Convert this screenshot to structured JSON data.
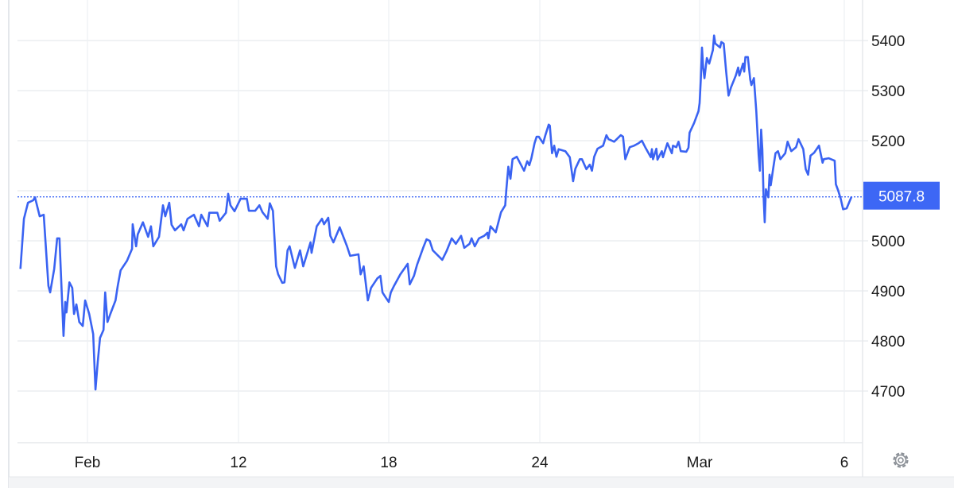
{
  "chart_data": {
    "type": "line",
    "title": "",
    "xlabel": "",
    "ylabel": "",
    "y_axis_position": "right",
    "ylim": [
      4610,
      5480
    ],
    "grid": true,
    "line_color": "#3a63f2",
    "last_value": "5087.8",
    "last_value_badge_color": "#3d67f5",
    "x_ticks": [
      "Feb",
      "12",
      "18",
      "24",
      "Mar",
      "6"
    ],
    "y_ticks": [
      5400,
      5300,
      5200,
      5100,
      5000,
      4900,
      4800,
      4700
    ],
    "y_tick_labels": [
      "5400",
      "5300",
      "5200",
      "5000",
      "4900",
      "4800",
      "4700"
    ],
    "series": [
      {
        "x": [
          "Jan 27 05:00",
          "Jan 27 11:00",
          "Jan 27 18:00",
          "Jan 28 03:00",
          "Jan 28 06:00",
          "Jan 28 14:00",
          "Jan 28 21:00",
          "Jan 29 05:00",
          "Jan 29 08:00",
          "Jan 29 15:00",
          "Jan 29 20:00",
          "Jan 30 00:00",
          "Jan 30 07:00",
          "Jan 30 10:00",
          "Jan 30 12:00",
          "Jan 30 17:00",
          "Jan 30 22:00",
          "Jan 31 01:00",
          "Jan 31 05:00",
          "Jan 31 10:00",
          "Jan 31 16:00",
          "Jan 31 20:00",
          "Feb 1 03:00",
          "Feb 1 10:00",
          "Feb 1 14:00",
          "Feb 1 18:00",
          "Feb 1 22:00",
          "Feb 2 04:00",
          "Feb 2 07:00",
          "Feb 2 11:00",
          "Feb 2 16:00",
          "Feb 3 01:00",
          "Feb 3 05:00",
          "Feb 3 10:00",
          "Feb 3 21:00",
          "Feb 4 06:00",
          "Feb 4 07:00",
          "Feb 4 13:00",
          "Feb 4 16:00",
          "Feb 5 01:00",
          "Feb 5 10:00",
          "Feb 5 15:00",
          "Feb 5 19:00",
          "Feb 6 05:00",
          "Feb 6 12:00",
          "Feb 6 16:00",
          "Feb 6 23:00",
          "Feb 7 03:00",
          "Feb 7 09:00",
          "Feb 7 20:00",
          "Feb 8 00:00",
          "Feb 8 07:00",
          "Feb 8 18:00",
          "Feb 9 03:00",
          "Feb 9 07:00",
          "Feb 9 18:00",
          "Feb 9 21:00",
          "Feb 10 11:00",
          "Feb 10 15:00",
          "Feb 11 02:00",
          "Feb 11 06:00",
          "Feb 11 10:00",
          "Feb 11 17:00",
          "Feb 12 02:00",
          "Feb 12 08:00",
          "Feb 12 10:00",
          "Feb 12 16:00",
          "Feb 12 20:00",
          "Feb 12 23:00",
          "Feb 13 04:00",
          "Feb 13 06:00",
          "Feb 13 09:00",
          "Feb 13 12:00",
          "Feb 13 14:00",
          "Feb 13 18:00",
          "Feb 13 20:00",
          "Feb 13 23:00",
          "Feb 14 01:00",
          "Feb 14 06:00",
          "Feb 14 11:00",
          "Feb 14 14:00",
          "Feb 14 21:00",
          "Feb 14 22:00",
          "Feb 15 03:00",
          "Feb 15 08:00",
          "Feb 15 10:00",
          "Feb 15 14:00",
          "Feb 15 16:00",
          "Feb 15 19:00",
          "Feb 16 01:00",
          "Feb 16 08:00",
          "Feb 16 11:00",
          "Feb 16 19:00",
          "Feb 16 21:00",
          "Feb 17 00:00",
          "Feb 17 04:00",
          "Feb 17 07:00",
          "Feb 17 13:00",
          "Feb 17 16:00",
          "Feb 17 18:00",
          "Feb 17 21:00",
          "Feb 18 00:00",
          "Feb 18 02:00",
          "Feb 18 05:00",
          "Feb 18 11:00",
          "Feb 18 18:00",
          "Feb 18 20:00",
          "Feb 19 00:00",
          "Feb 19 03:00",
          "Feb 19 09:00",
          "Feb 19 12:00",
          "Feb 19 15:00",
          "Feb 19 18:00",
          "Feb 20 03:00",
          "Feb 20 07:00",
          "Feb 20 12:00",
          "Feb 20 16:00",
          "Feb 20 21:00",
          "Feb 21 00:00",
          "Feb 21 05:00",
          "Feb 21 07:00",
          "Feb 21 10:00",
          "Feb 21 14:00",
          "Feb 21 19:00",
          "Feb 21 22:00",
          "Feb 21 23:00",
          "Feb 22 01:00",
          "Feb 22 06:00",
          "Feb 22 11:00",
          "Feb 22 15:00",
          "Feb 22 16:00",
          "Feb 22 18:00",
          "Feb 22 20:00",
          "Feb 22 22:00",
          "Feb 23 02:00",
          "Feb 23 09:00",
          "Feb 23 12:00",
          "Feb 23 14:00",
          "Feb 23 16:00",
          "Feb 23 19:00",
          "Feb 23 21:00",
          "Feb 23 23:00",
          "Feb 24 03:00",
          "Feb 24 05:00",
          "Feb 24 08:00",
          "Feb 24 09:00",
          "Feb 24 11:00",
          "Feb 24 13:00",
          "Feb 24 15:00",
          "Feb 24 17:00",
          "Feb 24 23:00",
          "Feb 25 03:00",
          "Feb 25 06:00",
          "Feb 25 08:00",
          "Feb 25 12:00",
          "Feb 25 14:00",
          "Feb 25 18:00",
          "Feb 25 21:00",
          "Feb 25 23:00",
          "Feb 26 01:00",
          "Feb 26 04:00",
          "Feb 26 09:00",
          "Feb 26 12:00",
          "Feb 26 14:00",
          "Feb 26 19:00",
          "Feb 27 01:00",
          "Feb 27 03:00",
          "Feb 27 05:00",
          "Feb 27 09:00",
          "Feb 27 13:00",
          "Feb 27 17:00",
          "Feb 27 20:00",
          "Feb 27 23:00",
          "Feb 28 04:00",
          "Feb 28 05:00",
          "Feb 28 06:00",
          "Feb 28 09:00",
          "Feb 28 10:00",
          "Feb 28 14:00",
          "Feb 28 15:00",
          "Feb 28 19:00",
          "Feb 28 23:00",
          "Feb 29 00:00",
          "Feb 29 03:00",
          "Feb 29 05:00",
          "Feb 29 07:00",
          "Feb 29 12:00",
          "Feb 29 14:00",
          "Feb 29 15:00",
          "Feb 29 19:00",
          "Feb 29 23:00",
          "Mar 1 00:00",
          "Mar 1 01:00",
          "Mar 1 02:00",
          "Mar 1 03:00",
          "Mar 1 04:00",
          "Mar 1 06:00",
          "Mar 1 08:00",
          "Mar 1 11:00",
          "Mar 1 12:00",
          "Mar 1 13:00",
          "Mar 1 17:00",
          "Mar 1 18:00",
          "Mar 1 20:00",
          "Mar 1 22:00",
          "Mar 2 00:00",
          "Mar 2 02:00",
          "Mar 2 06:00",
          "Mar 2 08:00",
          "Mar 2 09:00",
          "Mar 2 12:00",
          "Mar 2 13:00",
          "Mar 2 14:00",
          "Mar 2 16:00",
          "Mar 2 18:00",
          "Mar 2 19:00",
          "Mar 2 21:00",
          "Mar 2 23:00",
          "Mar 3 01:00",
          "Mar 3 02:00",
          "Mar 3 03:00",
          "Mar 3 04:00",
          "Mar 3 05:00",
          "Mar 3 06:00",
          "Mar 3 07:00",
          "Mar 3 09:00",
          "Mar 3 10:00",
          "Mar 3 11:00",
          "Mar 3 13:00",
          "Mar 3 15:00",
          "Mar 3 17:00",
          "Mar 3 19:00",
          "Mar 3 23:00",
          "Mar 4 01:00",
          "Mar 4 04:00",
          "Mar 4 08:00",
          "Mar 4 10:00",
          "Mar 4 14:00",
          "Mar 4 16:00",
          "Mar 4 18:00",
          "Mar 4 20:00",
          "Mar 4 23:00",
          "Mar 5 03:00",
          "Mar 5 06:00",
          "Mar 5 07:00",
          "Mar 5 11:00",
          "Mar 5 16:00",
          "Mar 5 17:00",
          "Mar 5 19:00",
          "Mar 5 21:00",
          "Mar 5 23:00",
          "Mar 6 02:00",
          "Mar 6 06:00"
        ],
        "y": [
          4944,
          5044,
          5076,
          5081,
          5087,
          5049,
          5052,
          4910,
          4897,
          4944,
          5005,
          5005,
          4810,
          4878,
          4857,
          4917,
          4906,
          4854,
          4873,
          4838,
          4830,
          4881,
          4854,
          4814,
          4703,
          4759,
          4806,
          4822,
          4897,
          4838,
          4854,
          4881,
          4910,
          4941,
          4960,
          4984,
          5033,
          4989,
          5013,
          5037,
          5008,
          5029,
          4989,
          5008,
          5071,
          5049,
          5076,
          5032,
          5021,
          5033,
          5021,
          5044,
          5052,
          5029,
          5052,
          5029,
          5056,
          5056,
          5040,
          5056,
          5094,
          5071,
          5059,
          5084,
          5084,
          5060,
          5060,
          5071,
          5057,
          5044,
          5075,
          5060,
          4949,
          4933,
          4916,
          4917,
          4981,
          4989,
          4946,
          4981,
          4949,
          4997,
          4976,
          5029,
          5044,
          5033,
          5046,
          5010,
          4997,
          5027,
          4989,
          4970,
          4973,
          4933,
          4949,
          4881,
          4906,
          4925,
          4930,
          4897,
          4887,
          4878,
          4897,
          4910,
          4933,
          4954,
          4913,
          4930,
          4952,
          4987,
          5003,
          5000,
          4981,
          4962,
          4979,
          5005,
          4994,
          5010,
          4986,
          4994,
          5005,
          4989,
          5005,
          5010,
          5016,
          5005,
          5029,
          5017,
          5057,
          5071,
          5100,
          5148,
          5124,
          5163,
          5168,
          5140,
          5159,
          5151,
          5165,
          5195,
          5208,
          5208,
          5195,
          5211,
          5232,
          5230,
          5175,
          5190,
          5168,
          5183,
          5179,
          5167,
          5119,
          5144,
          5163,
          5163,
          5143,
          5152,
          5140,
          5168,
          5184,
          5190,
          5211,
          5203,
          5198,
          5211,
          5208,
          5163,
          5187,
          5190,
          5195,
          5200,
          5187,
          5167,
          5183,
          5163,
          5184,
          5162,
          5179,
          5167,
          5195,
          5175,
          5190,
          5187,
          5198,
          5179,
          5178,
          5186,
          5216,
          5235,
          5259,
          5275,
          5322,
          5386,
          5346,
          5325,
          5365,
          5354,
          5381,
          5410,
          5394,
          5386,
          5397,
          5394,
          5338,
          5290,
          5306,
          5330,
          5346,
          5330,
          5354,
          5338,
          5367,
          5367,
          5322,
          5311,
          5325,
          5259,
          5171,
          5140,
          5222,
          5183,
          5092,
          5037,
          5103,
          5087,
          5132,
          5111,
          5144,
          5175,
          5179,
          5163,
          5175,
          5198,
          5179,
          5187,
          5203,
          5183,
          5143,
          5132,
          5170,
          5176,
          5190,
          5156,
          5163,
          5165,
          5160,
          5113,
          5100,
          5084,
          5063,
          5065,
          5087.8
        ]
      }
    ]
  },
  "icons": {
    "settings": "gear-icon"
  }
}
